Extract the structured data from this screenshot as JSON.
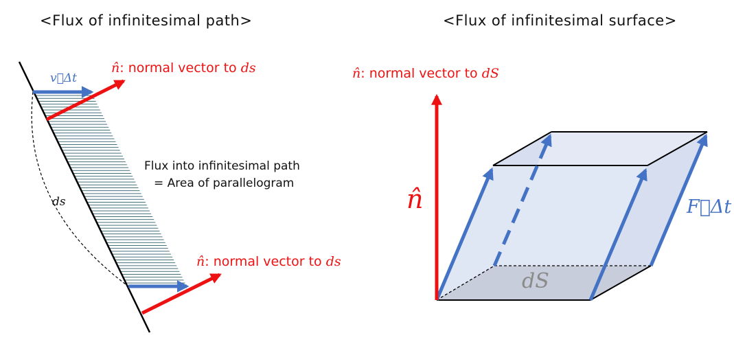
{
  "left": {
    "title": "<Flux of infinitesimal path>",
    "velocity_label": "v⃗Δt",
    "normal_top": {
      "symbol": "n̂",
      "text": ": normal vector to ",
      "target": "ds"
    },
    "normal_bottom": {
      "symbol": "n̂",
      "text": ": normal vector to ",
      "target": "ds"
    },
    "flux_line1": "Flux into infinitesimal path",
    "flux_line2": "= Area of parallelogram",
    "ds_label": "ds"
  },
  "right": {
    "title": "<Flux of infinitesimal surface>",
    "normal_label": {
      "symbol": "n̂",
      "text": ": normal vector to ",
      "target": "dS"
    },
    "n_hat": "n̂",
    "f_label": "F⃗Δt",
    "dS_label": "dS"
  },
  "colors": {
    "red": "#ee1111",
    "blue": "#4472c4",
    "box_fill": "#dde4f3",
    "base_fill": "#c8cddb",
    "hatch": "#2f5f6b"
  }
}
